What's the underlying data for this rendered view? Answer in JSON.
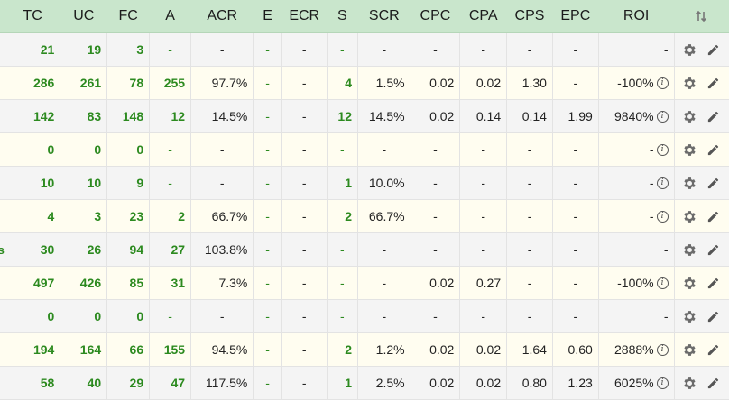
{
  "columns": {
    "tc": "TC",
    "uc": "UC",
    "fc": "FC",
    "a": "A",
    "acr": "ACR",
    "e": "E",
    "ecr": "ECR",
    "s": "S",
    "scr": "SCR",
    "cpc": "CPC",
    "cpa": "CPA",
    "cps": "CPS",
    "epc": "EPC",
    "roi": "ROI"
  },
  "icons": {
    "sort": "sort-arrows-icon",
    "settings": "gear-icon",
    "edit": "pencil-icon",
    "info": "info-icon"
  },
  "colors": {
    "header_bg": "#c9e6cc",
    "green": "#2c8a1f",
    "row_even": "#f4f4f4",
    "row_odd": "#fffdf0"
  },
  "rows": [
    {
      "lead": "",
      "tc": "21",
      "uc": "19",
      "fc": "3",
      "a": "-",
      "acr": "-",
      "e": "-",
      "ecr": "-",
      "s": "-",
      "scr": "-",
      "cpc": "-",
      "cpa": "-",
      "cps": "-",
      "epc": "-",
      "roi": "-",
      "roi_info": false
    },
    {
      "lead": "",
      "tc": "286",
      "uc": "261",
      "fc": "78",
      "a": "255",
      "acr": "97.7%",
      "e": "-",
      "ecr": "-",
      "s": "4",
      "scr": "1.5%",
      "cpc": "0.02",
      "cpa": "0.02",
      "cps": "1.30",
      "epc": "-",
      "roi": "-100%",
      "roi_info": true
    },
    {
      "lead": "",
      "tc": "142",
      "uc": "83",
      "fc": "148",
      "a": "12",
      "acr": "14.5%",
      "e": "-",
      "ecr": "-",
      "s": "12",
      "scr": "14.5%",
      "cpc": "0.02",
      "cpa": "0.14",
      "cps": "0.14",
      "epc": "1.99",
      "roi": "9840%",
      "roi_info": true
    },
    {
      "lead": "",
      "tc": "0",
      "uc": "0",
      "fc": "0",
      "a": "-",
      "acr": "-",
      "e": "-",
      "ecr": "-",
      "s": "-",
      "scr": "-",
      "cpc": "-",
      "cpa": "-",
      "cps": "-",
      "epc": "-",
      "roi": "-",
      "roi_info": true
    },
    {
      "lead": "",
      "tc": "10",
      "uc": "10",
      "fc": "9",
      "a": "-",
      "acr": "-",
      "e": "-",
      "ecr": "-",
      "s": "1",
      "scr": "10.0%",
      "cpc": "-",
      "cpa": "-",
      "cps": "-",
      "epc": "-",
      "roi": "-",
      "roi_info": true
    },
    {
      "lead": "",
      "tc": "4",
      "uc": "3",
      "fc": "23",
      "a": "2",
      "acr": "66.7%",
      "e": "-",
      "ecr": "-",
      "s": "2",
      "scr": "66.7%",
      "cpc": "-",
      "cpa": "-",
      "cps": "-",
      "epc": "-",
      "roi": "-",
      "roi_info": true
    },
    {
      "lead": "s",
      "tc": "30",
      "uc": "26",
      "fc": "94",
      "a": "27",
      "acr": "103.8%",
      "e": "-",
      "ecr": "-",
      "s": "-",
      "scr": "-",
      "cpc": "-",
      "cpa": "-",
      "cps": "-",
      "epc": "-",
      "roi": "-",
      "roi_info": false
    },
    {
      "lead": "",
      "tc": "497",
      "uc": "426",
      "fc": "85",
      "a": "31",
      "acr": "7.3%",
      "e": "-",
      "ecr": "-",
      "s": "-",
      "scr": "-",
      "cpc": "0.02",
      "cpa": "0.27",
      "cps": "-",
      "epc": "-",
      "roi": "-100%",
      "roi_info": true
    },
    {
      "lead": "",
      "tc": "0",
      "uc": "0",
      "fc": "0",
      "a": "-",
      "acr": "-",
      "e": "-",
      "ecr": "-",
      "s": "-",
      "scr": "-",
      "cpc": "-",
      "cpa": "-",
      "cps": "-",
      "epc": "-",
      "roi": "-",
      "roi_info": false
    },
    {
      "lead": "",
      "tc": "194",
      "uc": "164",
      "fc": "66",
      "a": "155",
      "acr": "94.5%",
      "e": "-",
      "ecr": "-",
      "s": "2",
      "scr": "1.2%",
      "cpc": "0.02",
      "cpa": "0.02",
      "cps": "1.64",
      "epc": "0.60",
      "roi": "2888%",
      "roi_info": true
    },
    {
      "lead": "",
      "tc": "58",
      "uc": "40",
      "fc": "29",
      "a": "47",
      "acr": "117.5%",
      "e": "-",
      "ecr": "-",
      "s": "1",
      "scr": "2.5%",
      "cpc": "0.02",
      "cpa": "0.02",
      "cps": "0.80",
      "epc": "1.23",
      "roi": "6025%",
      "roi_info": true
    }
  ]
}
